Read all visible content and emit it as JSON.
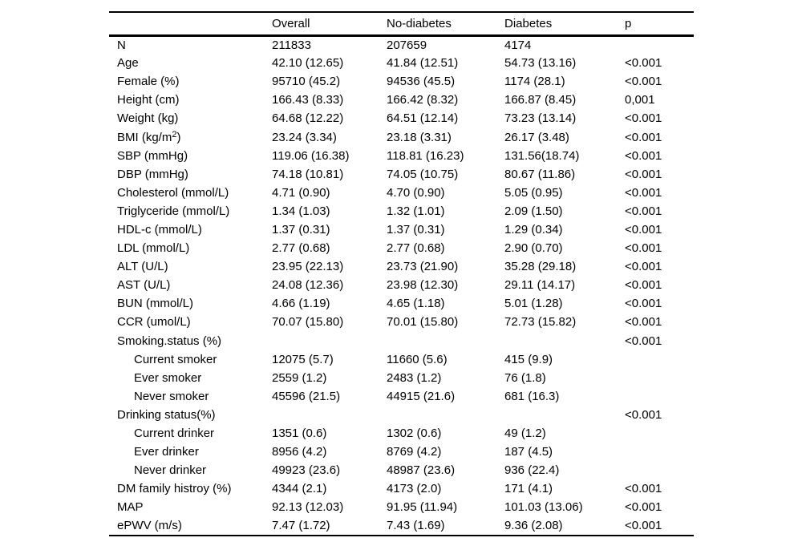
{
  "page": {
    "background_color": "#ffffff",
    "text_color": "#000000"
  },
  "table": {
    "columns": [
      "",
      "Overall",
      "No-diabetes",
      "Diabetes",
      "p"
    ],
    "rows": [
      {
        "label": "N",
        "indent": false,
        "overall": "211833",
        "no_diabetes": "207659",
        "diabetes": "4174",
        "p": ""
      },
      {
        "label": "Age",
        "indent": false,
        "overall": "42.10 (12.65)",
        "no_diabetes": "41.84 (12.51)",
        "diabetes": "54.73 (13.16)",
        "p": "<0.001"
      },
      {
        "label": "Female (%)",
        "indent": false,
        "overall": "95710 (45.2)",
        "no_diabetes": "94536 (45.5)",
        "diabetes": "1174 (28.1)",
        "p": "<0.001"
      },
      {
        "label": "Height (cm)",
        "indent": false,
        "overall": "166.43 (8.33)",
        "no_diabetes": "166.42 (8.32)",
        "diabetes": "166.87 (8.45)",
        "p": "0,001"
      },
      {
        "label": "Weight (kg)",
        "indent": false,
        "overall": "64.68 (12.22)",
        "no_diabetes": "64.51 (12.14)",
        "diabetes": "73.23 (13.14)",
        "p": "<0.001"
      },
      {
        "label": "BMI (kg/m²)",
        "indent": false,
        "overall": "23.24 (3.34)",
        "no_diabetes": "23.18 (3.31)",
        "diabetes": "26.17 (3.48)",
        "p": "<0.001"
      },
      {
        "label": "SBP (mmHg)",
        "indent": false,
        "overall": "119.06 (16.38)",
        "no_diabetes": "118.81 (16.23)",
        "diabetes": "131.56(18.74)",
        "p": "<0.001"
      },
      {
        "label": "DBP (mmHg)",
        "indent": false,
        "overall": "74.18 (10.81)",
        "no_diabetes": "74.05 (10.75)",
        "diabetes": "80.67 (11.86)",
        "p": "<0.001"
      },
      {
        "label": "Cholesterol (mmol/L)",
        "indent": false,
        "overall": "4.71 (0.90)",
        "no_diabetes": "4.70 (0.90)",
        "diabetes": "5.05 (0.95)",
        "p": "<0.001"
      },
      {
        "label": "Triglyceride (mmol/L)",
        "indent": false,
        "overall": "1.34 (1.03)",
        "no_diabetes": "1.32 (1.01)",
        "diabetes": "2.09 (1.50)",
        "p": "<0.001"
      },
      {
        "label": "HDL-c (mmol/L)",
        "indent": false,
        "overall": "1.37 (0.31)",
        "no_diabetes": "1.37 (0.31)",
        "diabetes": "1.29 (0.34)",
        "p": "<0.001"
      },
      {
        "label": "LDL (mmol/L)",
        "indent": false,
        "overall": "2.77 (0.68)",
        "no_diabetes": "2.77 (0.68)",
        "diabetes": "2.90 (0.70)",
        "p": "<0.001"
      },
      {
        "label": "ALT (U/L)",
        "indent": false,
        "overall": "23.95 (22.13)",
        "no_diabetes": "23.73 (21.90)",
        "diabetes": "35.28 (29.18)",
        "p": "<0.001"
      },
      {
        "label": "AST (U/L)",
        "indent": false,
        "overall": "24.08 (12.36)",
        "no_diabetes": "23.98 (12.30)",
        "diabetes": "29.11 (14.17)",
        "p": "<0.001"
      },
      {
        "label": "BUN (mmol/L)",
        "indent": false,
        "overall": "4.66 (1.19)",
        "no_diabetes": "4.65 (1.18)",
        "diabetes": "5.01 (1.28)",
        "p": "<0.001"
      },
      {
        "label": "CCR (umol/L)",
        "indent": false,
        "overall": "70.07 (15.80)",
        "no_diabetes": "70.01 (15.80)",
        "diabetes": "72.73 (15.82)",
        "p": "<0.001"
      },
      {
        "label": "Smoking.status (%)",
        "indent": false,
        "overall": "",
        "no_diabetes": "",
        "diabetes": "",
        "p": "<0.001"
      },
      {
        "label": "Current smoker",
        "indent": true,
        "overall": "12075 (5.7)",
        "no_diabetes": "11660 (5.6)",
        "diabetes": "415 (9.9)",
        "p": ""
      },
      {
        "label": "Ever smoker",
        "indent": true,
        "overall": "2559 (1.2)",
        "no_diabetes": "2483 (1.2)",
        "diabetes": "76 (1.8)",
        "p": ""
      },
      {
        "label": "Never smoker",
        "indent": true,
        "overall": "45596 (21.5)",
        "no_diabetes": "44915 (21.6)",
        "diabetes": "681 (16.3)",
        "p": ""
      },
      {
        "label": "Drinking status(%)",
        "indent": false,
        "overall": "",
        "no_diabetes": "",
        "diabetes": "",
        "p": "<0.001"
      },
      {
        "label": "Current drinker",
        "indent": true,
        "overall": "1351 (0.6)",
        "no_diabetes": "1302 (0.6)",
        "diabetes": "49 (1.2)",
        "p": ""
      },
      {
        "label": "Ever drinker",
        "indent": true,
        "overall": "8956 (4.2)",
        "no_diabetes": "8769 (4.2)",
        "diabetes": "187 (4.5)",
        "p": ""
      },
      {
        "label": "Never drinker",
        "indent": true,
        "overall": "49923 (23.6)",
        "no_diabetes": "48987 (23.6)",
        "diabetes": "936 (22.4)",
        "p": ""
      },
      {
        "label": "DM family histroy (%)",
        "indent": false,
        "overall": "4344 (2.1)",
        "no_diabetes": "4173 (2.0)",
        "diabetes": "171 (4.1)",
        "p": "<0.001"
      },
      {
        "label": "MAP",
        "indent": false,
        "overall": "92.13 (12.03)",
        "no_diabetes": "91.95 (11.94)",
        "diabetes": "101.03 (13.06)",
        "p": "<0.001"
      },
      {
        "label": "ePWV (m/s)",
        "indent": false,
        "overall": "7.47 (1.72)",
        "no_diabetes": "7.43 (1.69)",
        "diabetes": "9.36 (2.08)",
        "p": "<0.001"
      }
    ]
  }
}
